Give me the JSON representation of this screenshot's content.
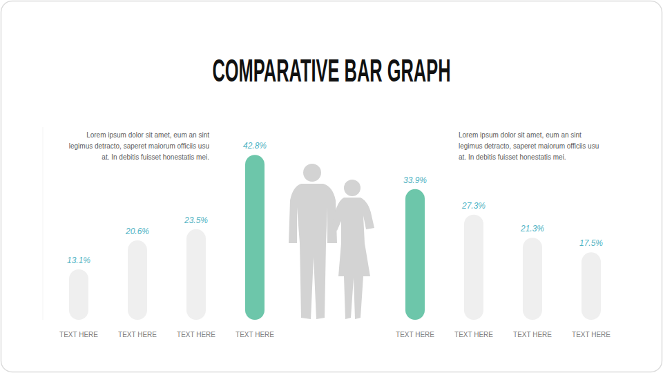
{
  "chart_data": {
    "type": "bar",
    "title": "COMPARATIVE BAR GRAPH",
    "annotations": [
      "Lorem ipsum dolor sit amet, eum an sint legimus detracto, saperet maiorum officiis usu at. In debitis fuisset honestatis mei.",
      "Lorem ipsum dolor sit amet, eum an sint legimus detracto, saperet maiorum officiis usu at. In debitis fuisset honestatis mei."
    ],
    "categories": [
      "TEXT HERE",
      "TEXT HERE",
      "TEXT HERE",
      "TEXT HERE",
      "TEXT HERE",
      "TEXT HERE",
      "TEXT HERE",
      "TEXT HERE"
    ],
    "values": [
      13.1,
      20.6,
      23.5,
      42.8,
      33.9,
      27.3,
      21.3,
      17.5
    ],
    "value_labels": [
      "13.1%",
      "20.6%",
      "23.5%",
      "42.8%",
      "33.9%",
      "27.3%",
      "21.3%",
      "17.5%"
    ],
    "colors": [
      "#efefef",
      "#efefef",
      "#efefef",
      "#6dc6aa",
      "#6dc6aa",
      "#efefef",
      "#efefef",
      "#efefef"
    ],
    "ylim": [
      0,
      50
    ],
    "grid": false,
    "data_labels": true,
    "tick_labels": false
  }
}
